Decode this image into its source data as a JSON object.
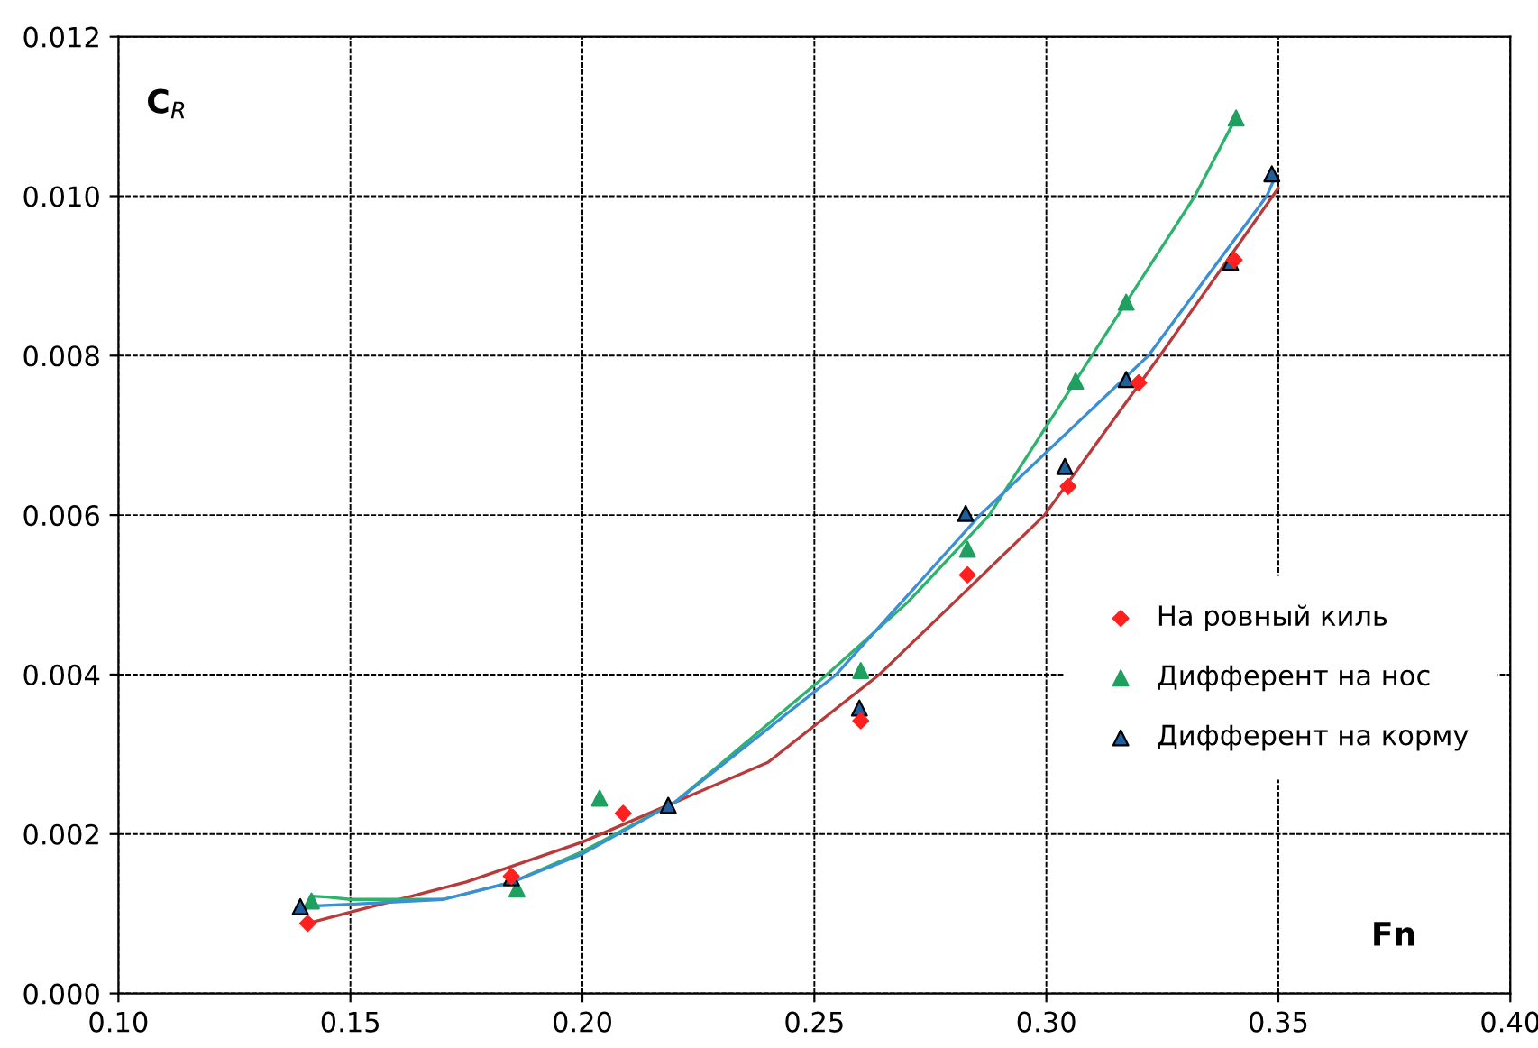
{
  "chart_data": {
    "type": "scatter",
    "xlabel": "Fn",
    "ylabel": "C$_{R}$",
    "xlim": [
      0.1,
      0.4
    ],
    "ylim": [
      0,
      0.012
    ],
    "xticks": [
      {
        "value": 0.1,
        "label": "0.10"
      },
      {
        "value": 0.15,
        "label": "0.15"
      },
      {
        "value": 0.2,
        "label": "0.20"
      },
      {
        "value": 0.25,
        "label": "0.25"
      },
      {
        "value": 0.3,
        "label": "0.30"
      },
      {
        "value": 0.35,
        "label": "0.35"
      },
      {
        "value": 0.4,
        "label": "0.40"
      }
    ],
    "yticks": [
      {
        "value": 0,
        "label": "0.000"
      },
      {
        "value": 0.002,
        "label": "0.002"
      },
      {
        "value": 0.004,
        "label": "0.004"
      },
      {
        "value": 0.006,
        "label": "0.006"
      },
      {
        "value": 0.008,
        "label": "0.008"
      },
      {
        "value": 0.01,
        "label": "0.010"
      },
      {
        "value": 0.012,
        "label": "0.012"
      }
    ],
    "grid": true,
    "legend": "right",
    "series": [
      {
        "type": "line",
        "color": "#b83a3a",
        "x": [
          0.1408,
          0.15,
          0.175,
          0.2,
          0.22,
          0.24,
          0.264,
          0.2996,
          0.3245,
          0.35
        ],
        "values": [
          0.00088,
          0.00102,
          0.0014,
          0.0019,
          0.0024,
          0.0029,
          0.004,
          0.006,
          0.008,
          0.0101
        ]
      },
      {
        "type": "line",
        "color": "#2db36b",
        "x": [
          0.1416,
          0.145,
          0.15,
          0.17,
          0.185,
          0.2,
          0.22,
          0.2527,
          0.27,
          0.2877,
          0.3098,
          0.332,
          0.341
        ],
        "values": [
          0.00122,
          0.00121,
          0.00118,
          0.00118,
          0.0014,
          0.00178,
          0.0024,
          0.004,
          0.0049,
          0.006,
          0.008,
          0.01,
          0.011
        ]
      },
      {
        "type": "line",
        "color": "#3b8fd6",
        "x": [
          0.139,
          0.15,
          0.17,
          0.185,
          0.2,
          0.22,
          0.2547,
          0.2857,
          0.322,
          0.3475,
          0.349
        ],
        "values": [
          0.00109,
          0.00112,
          0.00118,
          0.0014,
          0.00175,
          0.0024,
          0.004,
          0.006,
          0.008,
          0.01,
          0.0102
        ]
      },
      {
        "name": "На ровный киль",
        "marker": "diamond",
        "color": "#ff2020",
        "x": [
          0.1408,
          0.1847,
          0.2088,
          0.26,
          0.283,
          0.3047,
          0.3199,
          0.3405
        ],
        "values": [
          0.00088,
          0.00147,
          0.00226,
          0.00342,
          0.00525,
          0.00636,
          0.00766,
          0.0092
        ]
      },
      {
        "name": "Дифферент на нос",
        "marker": "triangle",
        "color": "#1fa060",
        "x": [
          0.1416,
          0.1859,
          0.2037,
          0.26,
          0.283,
          0.3063,
          0.3172,
          0.3409
        ],
        "values": [
          0.00116,
          0.00131,
          0.00245,
          0.00405,
          0.00557,
          0.00768,
          0.00867,
          0.01098
        ]
      },
      {
        "name": "Дифферент на корму",
        "marker": "triangle",
        "color": "#1f5fa0",
        "x": [
          0.1392,
          0.1847,
          0.2185,
          0.2597,
          0.2826,
          0.304,
          0.3172,
          0.3397,
          0.3486
        ],
        "values": [
          0.00109,
          0.00145,
          0.00236,
          0.00358,
          0.00602,
          0.00661,
          0.0077,
          0.00917,
          0.01028
        ]
      }
    ]
  }
}
